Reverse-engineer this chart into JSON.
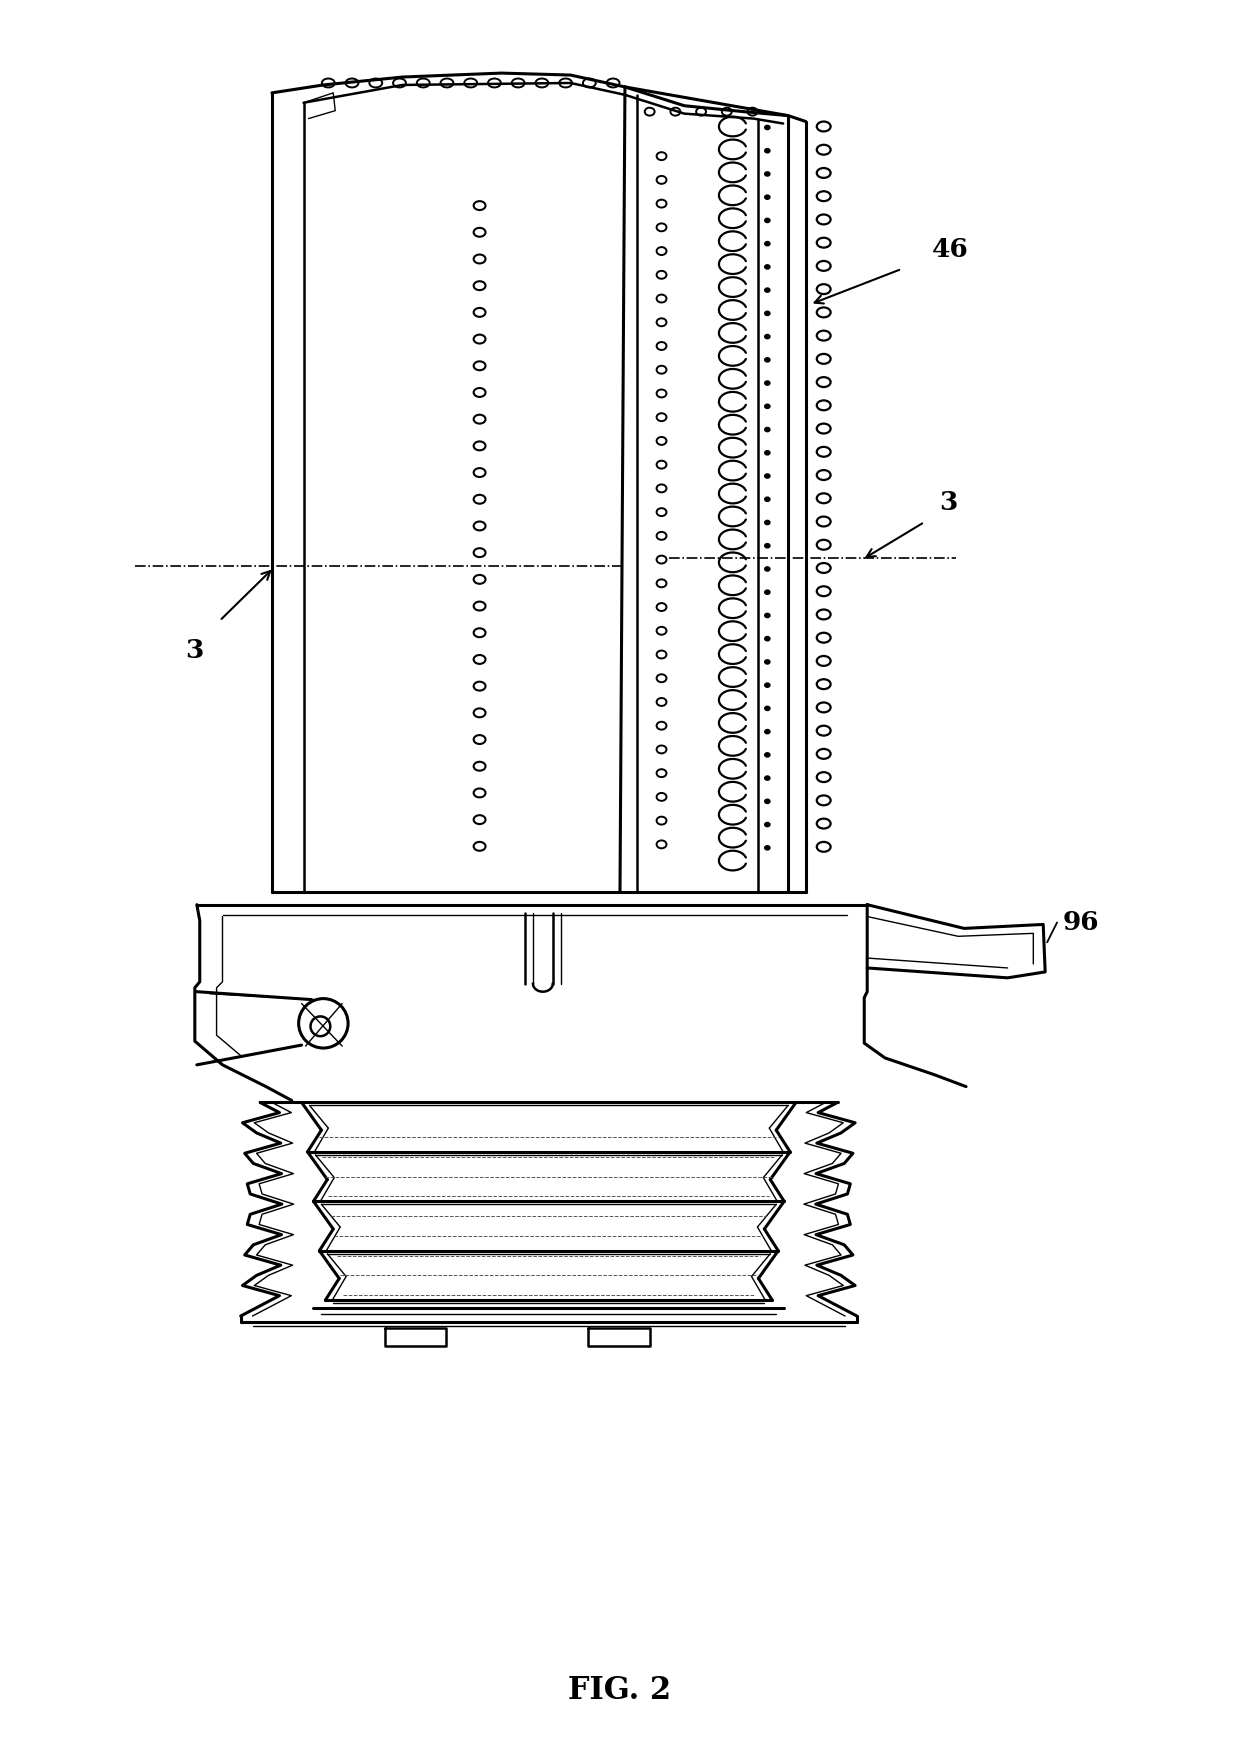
{
  "bg_color": "#ffffff",
  "line_color": "#000000",
  "fig_width": 12.4,
  "fig_height": 17.51,
  "dpi": 100,
  "title": "FIG. 2",
  "label_46": "46",
  "label_3a": "3",
  "label_3b": "3",
  "label_96": "96",
  "title_fontsize": 22,
  "label_fontsize": 19,
  "lw_main": 1.8,
  "lw_thin": 1.0,
  "lw_thick": 2.2
}
